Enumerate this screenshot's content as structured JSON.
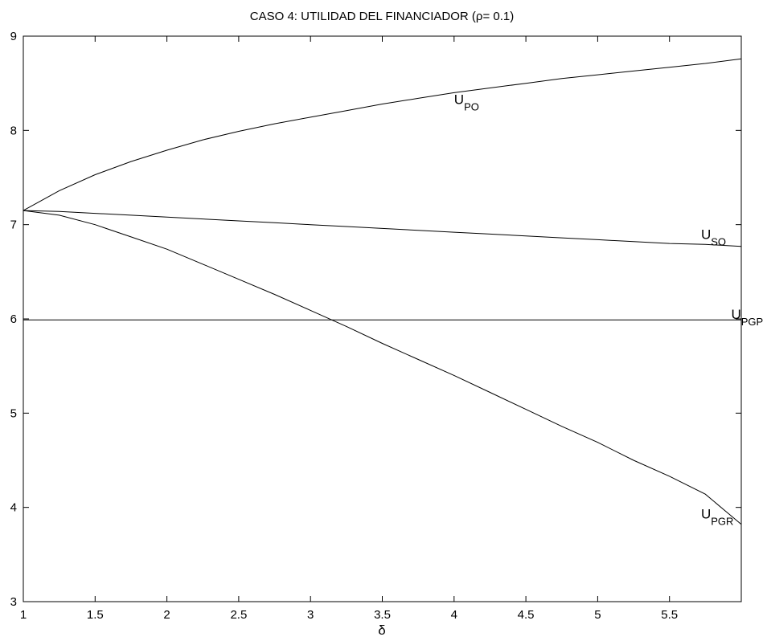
{
  "chart_data": {
    "type": "line",
    "title": "CASO 4: UTILIDAD DEL FINANCIADOR (ρ= 0.1)",
    "xlabel": "δ",
    "ylabel": "",
    "xlim": [
      1,
      6
    ],
    "ylim": [
      3,
      9
    ],
    "xticks": [
      1,
      1.5,
      2,
      2.5,
      3,
      3.5,
      4,
      4.5,
      5,
      5.5
    ],
    "xtick_labels": [
      "1",
      "1.5",
      "2",
      "2.5",
      "3",
      "3.5",
      "4",
      "4.5",
      "5",
      "5.5"
    ],
    "yticks": [
      3,
      4,
      5,
      6,
      7,
      8,
      9
    ],
    "ytick_labels": [
      "3",
      "4",
      "5",
      "6",
      "7",
      "8",
      "9"
    ],
    "grid": false,
    "legend": "none",
    "series": [
      {
        "name": "U",
        "sub": "PO",
        "label_at": [
          4.0,
          8.28
        ],
        "x": [
          1.0,
          1.25,
          1.5,
          1.75,
          2.0,
          2.25,
          2.5,
          2.75,
          3.0,
          3.25,
          3.5,
          3.75,
          4.0,
          4.25,
          4.5,
          4.75,
          5.0,
          5.25,
          5.5,
          5.75,
          6.0
        ],
        "values": [
          7.15,
          7.36,
          7.53,
          7.67,
          7.79,
          7.9,
          7.99,
          8.07,
          8.14,
          8.21,
          8.28,
          8.34,
          8.4,
          8.45,
          8.5,
          8.55,
          8.59,
          8.63,
          8.67,
          8.71,
          8.76
        ]
      },
      {
        "name": "U",
        "sub": "SO",
        "label_at": [
          5.72,
          6.85
        ],
        "x": [
          1.0,
          1.25,
          1.5,
          1.75,
          2.0,
          2.25,
          2.5,
          2.75,
          3.0,
          3.25,
          3.5,
          3.75,
          4.0,
          4.25,
          4.5,
          4.75,
          5.0,
          5.25,
          5.5,
          5.75,
          6.0
        ],
        "values": [
          7.15,
          7.14,
          7.12,
          7.1,
          7.08,
          7.06,
          7.04,
          7.02,
          7.0,
          6.98,
          6.96,
          6.94,
          6.92,
          6.9,
          6.88,
          6.86,
          6.84,
          6.82,
          6.8,
          6.79,
          6.77
        ]
      },
      {
        "name": "U",
        "sub": "PGP",
        "label_at": [
          5.93,
          6.0
        ],
        "x": [
          1.0,
          6.0
        ],
        "values": [
          5.99,
          5.99
        ]
      },
      {
        "name": "U",
        "sub": "PGR",
        "label_at": [
          5.72,
          3.88
        ],
        "x": [
          1.0,
          1.25,
          1.5,
          1.75,
          2.0,
          2.25,
          2.5,
          2.75,
          3.0,
          3.25,
          3.5,
          3.75,
          4.0,
          4.25,
          4.5,
          4.75,
          5.0,
          5.25,
          5.5,
          5.75,
          6.0
        ],
        "values": [
          7.15,
          7.1,
          7.0,
          6.87,
          6.74,
          6.58,
          6.42,
          6.26,
          6.09,
          5.92,
          5.74,
          5.57,
          5.4,
          5.22,
          5.04,
          4.86,
          4.69,
          4.5,
          4.33,
          4.14,
          3.82
        ]
      }
    ]
  }
}
